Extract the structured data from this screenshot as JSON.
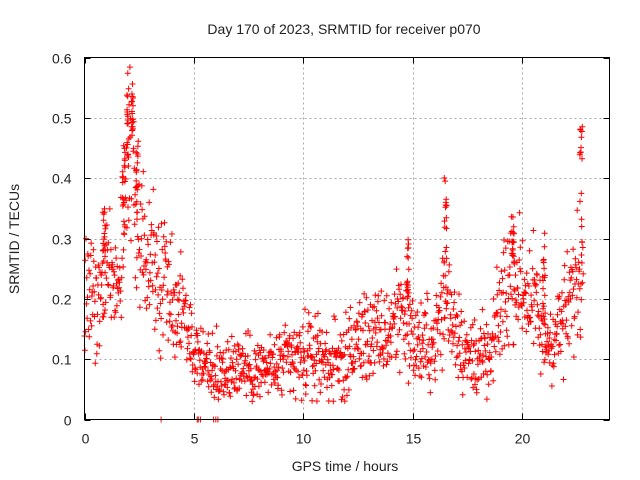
{
  "chart_data": {
    "type": "scatter",
    "title": "Day 170 of 2023, SRMTID for receiver p070",
    "xlabel": "GPS time / hours",
    "ylabel": "SRMTID / TECUs",
    "xlim": [
      0,
      24
    ],
    "ylim": [
      0,
      0.6
    ],
    "xticks": [
      0,
      5,
      10,
      15,
      20
    ],
    "yticks": [
      0,
      0.1,
      0.2,
      0.3,
      0.4,
      0.5,
      0.6
    ],
    "grid": true,
    "marker": "+",
    "color": "#ff0000",
    "series": [
      {
        "name": "SRMTID",
        "trend": [
          [
            0.0,
            0.22
          ],
          [
            0.3,
            0.2
          ],
          [
            0.6,
            0.18
          ],
          [
            1.0,
            0.25
          ],
          [
            1.5,
            0.23
          ],
          [
            1.8,
            0.3
          ],
          [
            2.0,
            0.42
          ],
          [
            2.2,
            0.46
          ],
          [
            2.4,
            0.3
          ],
          [
            2.8,
            0.26
          ],
          [
            3.2,
            0.25
          ],
          [
            3.6,
            0.23
          ],
          [
            4.0,
            0.21
          ],
          [
            4.4,
            0.18
          ],
          [
            4.8,
            0.14
          ],
          [
            5.2,
            0.1
          ],
          [
            6.0,
            0.08
          ],
          [
            7.0,
            0.09
          ],
          [
            8.0,
            0.08
          ],
          [
            9.0,
            0.09
          ],
          [
            10.0,
            0.1
          ],
          [
            10.6,
            0.11
          ],
          [
            11.5,
            0.09
          ],
          [
            12.0,
            0.1
          ],
          [
            12.5,
            0.13
          ],
          [
            13.0,
            0.14
          ],
          [
            13.5,
            0.13
          ],
          [
            14.0,
            0.15
          ],
          [
            14.5,
            0.19
          ],
          [
            15.0,
            0.13
          ],
          [
            15.5,
            0.12
          ],
          [
            16.0,
            0.13
          ],
          [
            16.5,
            0.2
          ],
          [
            17.0,
            0.16
          ],
          [
            17.5,
            0.1
          ],
          [
            18.0,
            0.11
          ],
          [
            18.5,
            0.09
          ],
          [
            19.0,
            0.18
          ],
          [
            19.5,
            0.25
          ],
          [
            20.0,
            0.22
          ],
          [
            20.5,
            0.2
          ],
          [
            21.0,
            0.13
          ],
          [
            21.5,
            0.14
          ],
          [
            22.0,
            0.17
          ],
          [
            22.5,
            0.23
          ],
          [
            22.8,
            0.25
          ]
        ],
        "bursts": [
          {
            "x": 2.0,
            "value": 0.58
          },
          {
            "x": 2.2,
            "value": 0.54
          },
          {
            "x": 2.4,
            "value": 0.48
          },
          {
            "x": 1.8,
            "value": 0.47
          },
          {
            "x": 16.5,
            "value": 0.41
          },
          {
            "x": 22.7,
            "value": 0.49
          },
          {
            "x": 19.6,
            "value": 0.32
          },
          {
            "x": 21.0,
            "value": 0.32
          },
          {
            "x": 14.8,
            "value": 0.3
          },
          {
            "x": 0.9,
            "value": 0.36
          }
        ],
        "zero_points": [
          3.5,
          5.15,
          5.2,
          5.3,
          5.9,
          6.0,
          6.1
        ]
      }
    ]
  }
}
